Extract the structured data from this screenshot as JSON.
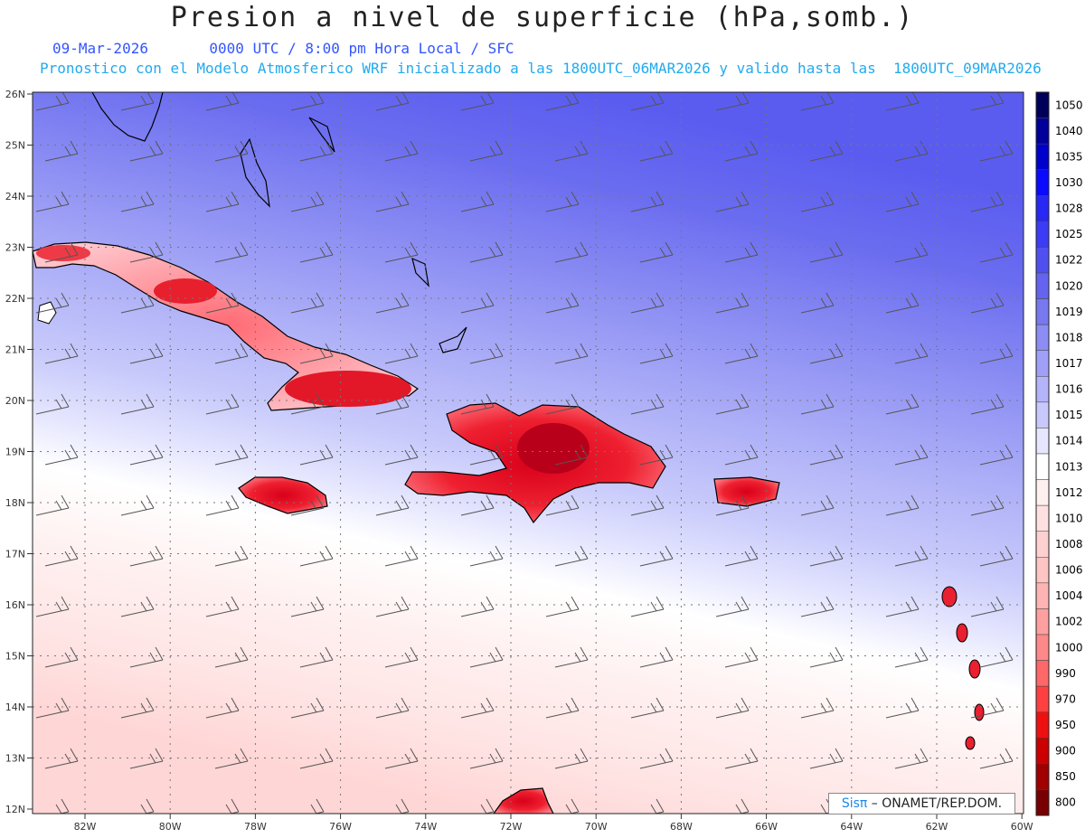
{
  "header": {
    "title": "Presion a nivel de superficie (hPa,somb.)",
    "date": "09-Mar-2026",
    "time_info": "0000 UTC / 8:00 pm Hora Local / SFC",
    "model_info": "Pronostico con el Modelo Atmosferico WRF inicializado a las 1800UTC_06MAR2026 y valido hasta las  1800UTC_09MAR2026"
  },
  "map": {
    "lat_labels": [
      "26N",
      "25N",
      "24N",
      "23N",
      "22N",
      "21N",
      "20N",
      "19N",
      "18N",
      "17N",
      "16N",
      "15N",
      "14N",
      "13N",
      "12N"
    ],
    "lon_labels": [
      "82W",
      "80W",
      "78W",
      "76W",
      "74W",
      "72W",
      "70W",
      "68W",
      "66W",
      "64W",
      "62W",
      "60W"
    ],
    "colors": {
      "high_pressure": "#5e60f0",
      "low_pressure_land": "#e8001a",
      "coastline": "#000000"
    }
  },
  "colorbar": {
    "levels": [
      "1050",
      "1040",
      "1035",
      "1030",
      "1028",
      "1025",
      "1022",
      "1020",
      "1019",
      "1018",
      "1017",
      "1016",
      "1015",
      "1014",
      "1013",
      "1012",
      "1010",
      "1008",
      "1006",
      "1004",
      "1002",
      "1000",
      "990",
      "970",
      "950",
      "900",
      "850",
      "800"
    ],
    "colors": [
      "#00005a",
      "#00009a",
      "#0000cc",
      "#0a0aff",
      "#2828f5",
      "#3c3cf5",
      "#5050f0",
      "#6464f0",
      "#7878f0",
      "#8c8cf4",
      "#a0a0f8",
      "#b4b4fa",
      "#c8c8fc",
      "#e6e6fe",
      "#ffffff",
      "#fff0f0",
      "#ffe0e0",
      "#ffd0d0",
      "#ffc4c4",
      "#ffb4b4",
      "#ffa0a0",
      "#ff8888",
      "#ff6868",
      "#ff4040",
      "#ee1010",
      "#cc0000",
      "#a00000",
      "#780000"
    ]
  },
  "credit": {
    "brand": "Sisπ",
    "org": " – ONAMET/REP.DOM."
  }
}
